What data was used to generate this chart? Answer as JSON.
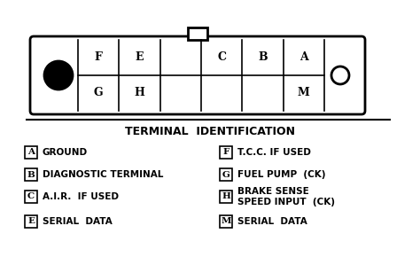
{
  "title": "TERMINAL  IDENTIFICATION",
  "title_fontsize": 9,
  "bg_color": "#ffffff",
  "line_color": "#000000",
  "legend_entries_left": [
    {
      "label": "A",
      "desc": "GROUND"
    },
    {
      "label": "B",
      "desc": "DIAGNOSTIC TERMINAL"
    },
    {
      "label": "C",
      "desc": "A.I.R.  IF USED"
    },
    {
      "label": "E",
      "desc": "SERIAL  DATA"
    }
  ],
  "legend_entries_right": [
    {
      "label": "F",
      "desc": "T.C.C. IF USED"
    },
    {
      "label": "G",
      "desc": "FUEL PUMP  (CK)"
    },
    {
      "label": "H",
      "desc": "BRAKE SENSE\nSPEED INPUT  (CK)"
    },
    {
      "label": "M",
      "desc": "SERIAL  DATA"
    }
  ],
  "connector_top_labels": [
    "F",
    "E",
    "",
    "C",
    "B",
    "A"
  ],
  "connector_bottom_labels": [
    "G",
    "H",
    "",
    "",
    "",
    "M"
  ],
  "connector_left_has_circle": true,
  "connector_right_has_hexagon": true,
  "connector_top_has_tab": true
}
